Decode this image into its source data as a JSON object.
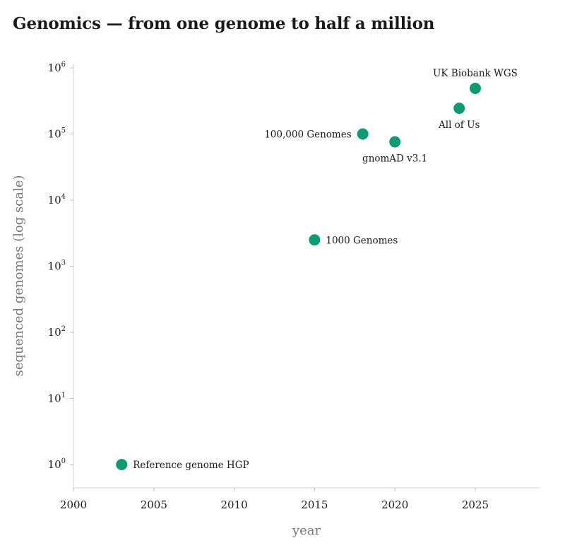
{
  "chart_data": {
    "type": "scatter",
    "title": "Genomics — from one genome to half a million",
    "xlabel": "year",
    "ylabel": "sequenced genomes (log scale)",
    "xlim": [
      2000,
      2029
    ],
    "ylim": [
      0.45,
      1000000
    ],
    "yscale": "log",
    "x_ticks": [
      "2000",
      "2005",
      "2010",
      "2015",
      "2020",
      "2025"
    ],
    "y_ticks": [
      {
        "base": "10",
        "exp": "0"
      },
      {
        "base": "10",
        "exp": "1"
      },
      {
        "base": "10",
        "exp": "2"
      },
      {
        "base": "10",
        "exp": "3"
      },
      {
        "base": "10",
        "exp": "4"
      },
      {
        "base": "10",
        "exp": "5"
      },
      {
        "base": "10",
        "exp": "6"
      }
    ],
    "marker_color": "#0e9b73",
    "grid": false,
    "points": [
      {
        "label": "Reference genome HGP",
        "x": 2003,
        "y": 1
      },
      {
        "label": "1000 Genomes",
        "x": 2015,
        "y": 2500
      },
      {
        "label": "100,000 Genomes",
        "x": 2018,
        "y": 100000
      },
      {
        "label": "gnomAD v3.1",
        "x": 2020,
        "y": 76000
      },
      {
        "label": "All of Us",
        "x": 2024,
        "y": 245000
      },
      {
        "label": "UK Biobank WGS",
        "x": 2025,
        "y": 490000
      }
    ]
  }
}
